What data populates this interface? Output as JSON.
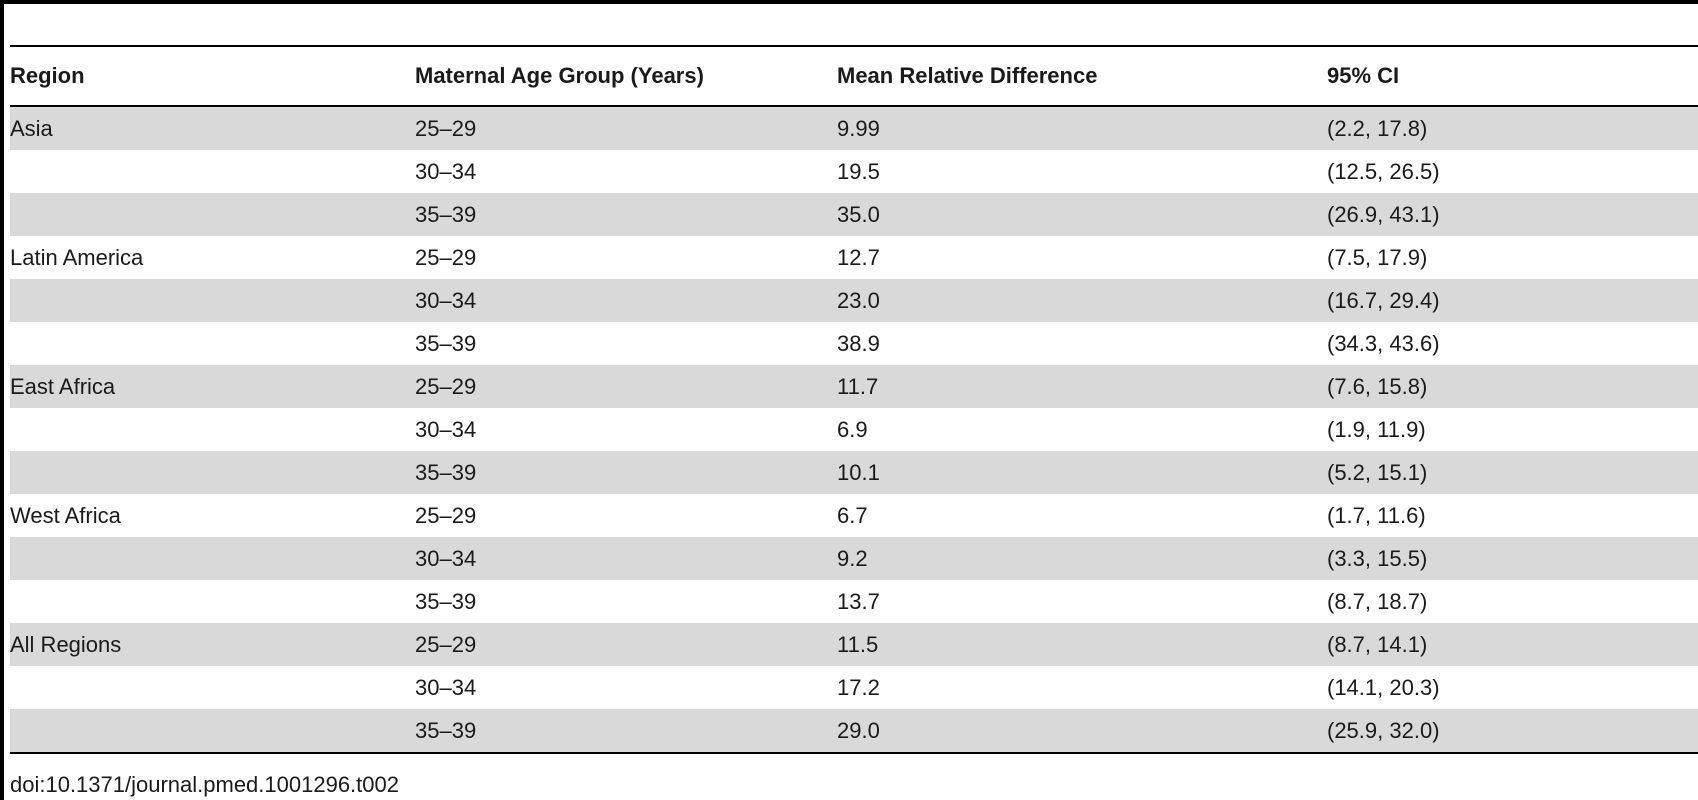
{
  "table": {
    "headers": [
      "Region",
      "Maternal Age Group (Years)",
      "Mean Relative Difference",
      "95% CI"
    ],
    "rows": [
      [
        "Asia",
        "25–29",
        "9.99",
        "(2.2, 17.8)"
      ],
      [
        "",
        "30–34",
        "19.5",
        "(12.5, 26.5)"
      ],
      [
        "",
        "35–39",
        "35.0",
        "(26.9, 43.1)"
      ],
      [
        "Latin America",
        "25–29",
        "12.7",
        "(7.5, 17.9)"
      ],
      [
        "",
        "30–34",
        "23.0",
        "(16.7, 29.4)"
      ],
      [
        "",
        "35–39",
        "38.9",
        "(34.3, 43.6)"
      ],
      [
        "East Africa",
        "25–29",
        "11.7",
        "(7.6, 15.8)"
      ],
      [
        "",
        "30–34",
        "6.9",
        "(1.9, 11.9)"
      ],
      [
        "",
        "35–39",
        "10.1",
        "(5.2, 15.1)"
      ],
      [
        "West Africa",
        "25–29",
        "6.7",
        "(1.7, 11.6)"
      ],
      [
        "",
        "30–34",
        "9.2",
        "(3.3, 15.5)"
      ],
      [
        "",
        "35–39",
        "13.7",
        "(8.7, 18.7)"
      ],
      [
        "All Regions",
        "25–29",
        "11.5",
        "(8.7, 14.1)"
      ],
      [
        "",
        "30–34",
        "17.2",
        "(14.1, 20.3)"
      ],
      [
        "",
        "35–39",
        "29.0",
        "(25.9, 32.0)"
      ]
    ]
  },
  "doi": "doi:10.1371/journal.pmed.1001296.t002",
  "colors": {
    "stripe": "#d9d9d9",
    "rule": "#000000"
  }
}
